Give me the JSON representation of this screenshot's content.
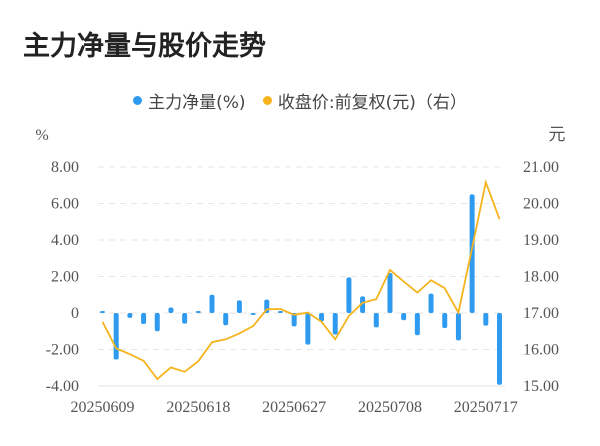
{
  "title": "主力净量与股价走势",
  "legend": [
    {
      "label": "主力净量(%)",
      "color": "#2e9bf0"
    },
    {
      "label": "收盘价:前复权(元)（右）",
      "color": "#f5b41e"
    }
  ],
  "axes": {
    "left_unit": "%",
    "right_unit": "元",
    "left_ticks": [
      "8.00",
      "6.00",
      "4.00",
      "2.00",
      "0",
      "-2.00",
      "-4.00"
    ],
    "right_ticks": [
      "21.00",
      "20.00",
      "19.00",
      "18.00",
      "17.00",
      "16.00",
      "15.00"
    ],
    "x_tick_labels": [
      "20250609",
      "20250618",
      "20250627",
      "20250708",
      "20250717"
    ]
  },
  "chart_data": {
    "type": "bar+line",
    "title": "主力净量与股价走势",
    "categories": [
      "20250609",
      "20250610",
      "20250611",
      "20250612",
      "20250613",
      "20250616",
      "20250617",
      "20250618",
      "20250619",
      "20250620",
      "20250623",
      "20250624",
      "20250625",
      "20250626",
      "20250627",
      "20250630",
      "20250701",
      "20250702",
      "20250703",
      "20250704",
      "20250707",
      "20250708",
      "20250709",
      "20250710",
      "20250711",
      "20250714",
      "20250715",
      "20250716",
      "20250717",
      "20250718"
    ],
    "series": [
      {
        "name": "主力净量(%)",
        "type": "bar",
        "axis": "left",
        "color": "#2e9bf0",
        "values": [
          0.1,
          -2.55,
          -0.27,
          -0.6,
          -1.0,
          0.3,
          -0.58,
          0.1,
          1.0,
          -0.67,
          0.69,
          -0.08,
          0.73,
          0.1,
          -0.73,
          -1.73,
          -0.45,
          -1.18,
          1.95,
          0.91,
          -0.79,
          2.19,
          -0.4,
          -1.22,
          1.06,
          -0.82,
          -1.5,
          6.5,
          -0.69,
          -3.93
        ]
      },
      {
        "name": "收盘价:前复权(元)（右）",
        "type": "line",
        "axis": "right",
        "color": "#f5b41e",
        "values": [
          16.76,
          16.03,
          15.87,
          15.69,
          15.19,
          15.51,
          15.39,
          15.68,
          16.2,
          16.28,
          16.44,
          16.64,
          17.1,
          17.11,
          16.95,
          17.01,
          16.76,
          16.28,
          16.92,
          17.28,
          17.38,
          18.18,
          17.86,
          17.56,
          17.9,
          17.68,
          17.01,
          18.78,
          20.58,
          19.57
        ]
      }
    ],
    "xlabel": "",
    "ylabel_left": "%",
    "ylabel_right": "元",
    "ylim_left": [
      -4,
      8
    ],
    "ylim_right": [
      15,
      21
    ],
    "grid": true,
    "legend_position": "top"
  }
}
